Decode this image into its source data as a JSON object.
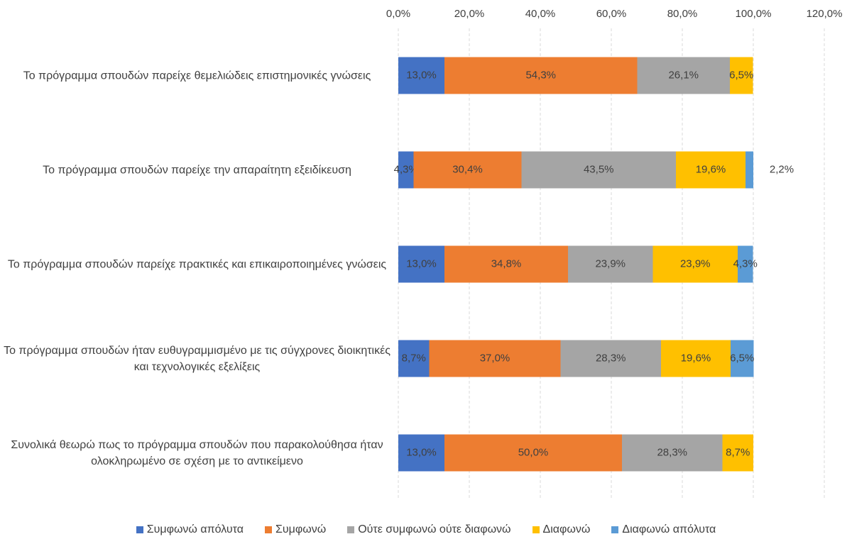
{
  "chart_data": {
    "type": "stacked_barh",
    "categories": [
      "Το πρόγραμμα σπουδών παρείχε θεμελιώδεις επιστημονικές γνώσεις",
      "Το πρόγραμμα σπουδών παρείχε την απαραίτητη εξειδίκευση",
      "Το πρόγραμμα σπουδών παρείχε πρακτικές και επικαιροποιημένες γνώσεις",
      "Το πρόγραμμα σπουδών ήταν ευθυγραμμισμένο με τις σύγχρονες διοικητικές και τεχνολογικές εξελίξεις",
      "Συνολικά θεωρώ πως το πρόγραμμα σπουδών που παρακολούθησα ήταν ολοκληρωμένο σε σχέση με το αντικείμενο"
    ],
    "series": [
      {
        "name": "Συμφωνώ απόλυτα",
        "color": "#4472c4",
        "values": [
          13.0,
          4.3,
          13.0,
          8.7,
          13.0
        ],
        "value_labels": [
          "13,0%",
          "4,3%",
          "13,0%",
          "8,7%",
          "13,0%"
        ]
      },
      {
        "name": "Συμφωνώ",
        "color": "#ed7d31",
        "values": [
          54.3,
          30.4,
          34.8,
          37.0,
          50.0
        ],
        "value_labels": [
          "54,3%",
          "30,4%",
          "34,8%",
          "37,0%",
          "50,0%"
        ]
      },
      {
        "name": "Ούτε συμφωνώ ούτε διαφωνώ",
        "color": "#a5a5a5",
        "values": [
          26.1,
          43.5,
          23.9,
          28.3,
          28.3
        ],
        "value_labels": [
          "26,1%",
          "43,5%",
          "23,9%",
          "28,3%",
          "28,3%"
        ]
      },
      {
        "name": "Διαφωνώ",
        "color": "#ffc000",
        "values": [
          6.5,
          19.6,
          23.9,
          19.6,
          8.7
        ],
        "value_labels": [
          "6,5%",
          "19,6%",
          "23,9%",
          "19,6%",
          "8,7%"
        ]
      },
      {
        "name": "Διαφωνώ απόλυτα",
        "color": "#5b9bd5",
        "values": [
          null,
          2.2,
          4.3,
          6.5,
          null
        ],
        "value_labels": [
          null,
          "2,2%",
          "4,3%",
          "6,5%",
          null
        ]
      }
    ],
    "xlim": [
      0,
      120
    ],
    "xticks": [
      {
        "value": 0,
        "label": "0,0%"
      },
      {
        "value": 20,
        "label": "20,0%"
      },
      {
        "value": 40,
        "label": "40,0%"
      },
      {
        "value": 60,
        "label": "60,0%"
      },
      {
        "value": 80,
        "label": "80,0%"
      },
      {
        "value": 100,
        "label": "100,0%"
      },
      {
        "value": 120,
        "label": "120,0%"
      }
    ],
    "grid": true,
    "legend": "bottom"
  }
}
